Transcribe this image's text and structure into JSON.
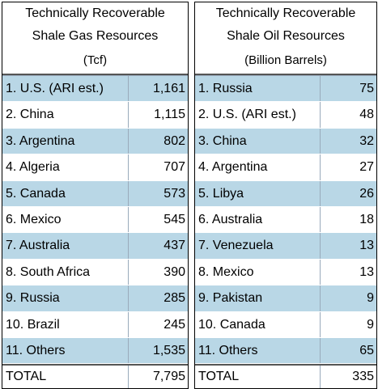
{
  "gas": {
    "title_line1": "Technically Recoverable",
    "title_line2": "Shale Gas Resources",
    "unit": "(Tcf)",
    "rows": [
      {
        "name": "1. U.S. (ARI est.)",
        "value": "1,161"
      },
      {
        "name": "2. China",
        "value": "1,115"
      },
      {
        "name": "3. Argentina",
        "value": "802"
      },
      {
        "name": "4. Algeria",
        "value": "707"
      },
      {
        "name": "5. Canada",
        "value": "573"
      },
      {
        "name": "6. Mexico",
        "value": "545"
      },
      {
        "name": "7. Australia",
        "value": "437"
      },
      {
        "name": "8. South Africa",
        "value": "390"
      },
      {
        "name": "9. Russia",
        "value": "285"
      },
      {
        "name": "10. Brazil",
        "value": "245"
      },
      {
        "name": "11. Others",
        "value": "1,535"
      }
    ],
    "total_label": "TOTAL",
    "total_value": "7,795"
  },
  "oil": {
    "title_line1": "Technically Recoverable",
    "title_line2": "Shale Oil Resources",
    "unit": "(Billion Barrels)",
    "rows": [
      {
        "name": "1. Russia",
        "value": "75"
      },
      {
        "name": "2. U.S. (ARI est.)",
        "value": "48"
      },
      {
        "name": "3. China",
        "value": "32"
      },
      {
        "name": "4. Argentina",
        "value": "27"
      },
      {
        "name": "5. Libya",
        "value": "26"
      },
      {
        "name": "6. Australia",
        "value": "18"
      },
      {
        "name": "7. Venezuela",
        "value": "13"
      },
      {
        "name": "8. Mexico",
        "value": "13"
      },
      {
        "name": "9. Pakistan",
        "value": "9"
      },
      {
        "name": "10. Canada",
        "value": "9"
      },
      {
        "name": "11. Others",
        "value": "65"
      }
    ],
    "total_label": "TOTAL",
    "total_value": "335"
  },
  "colors": {
    "row_alt": "#b9d7e6"
  }
}
